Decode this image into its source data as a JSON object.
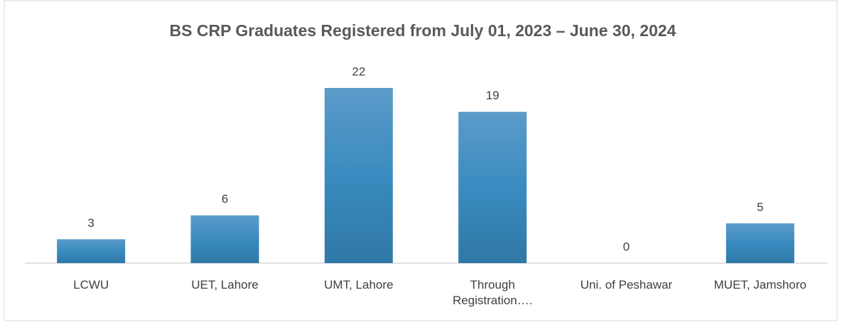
{
  "chart_data": {
    "type": "bar",
    "title": "BS CRP Graduates Registered from July 01, 2023 –  June 30, 2024",
    "categories": [
      "LCWU",
      "UET, Lahore",
      "UMT, Lahore",
      "Through Registration….",
      "Uni. of Peshawar",
      "MUET, Jamshoro"
    ],
    "values": [
      3,
      6,
      22,
      19,
      0,
      5
    ],
    "color": "#3a87b9"
  }
}
